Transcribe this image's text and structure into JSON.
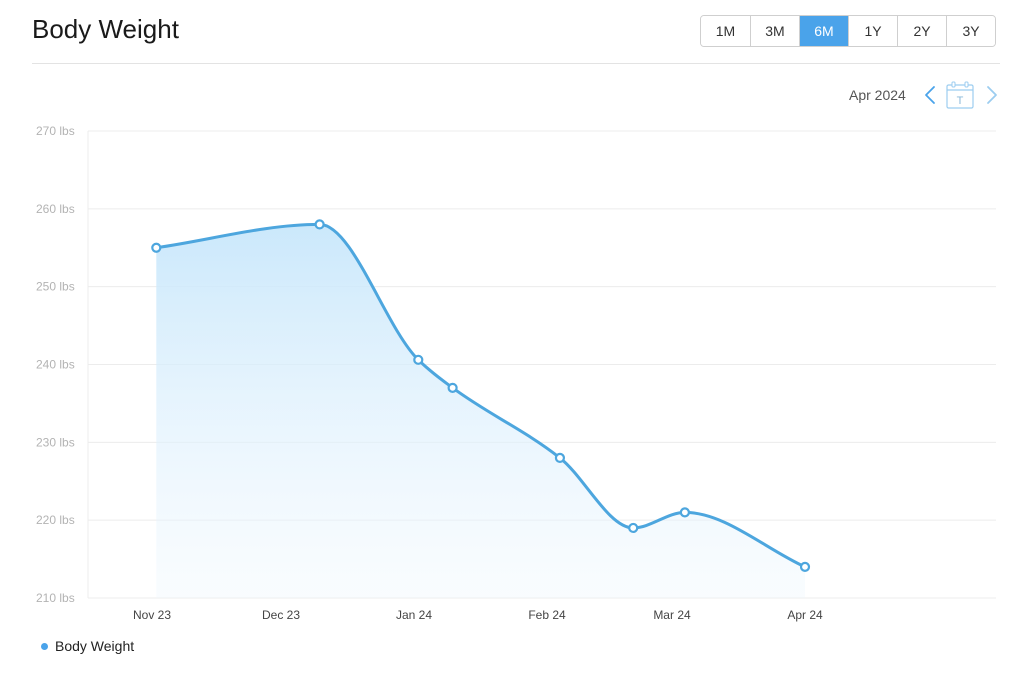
{
  "header": {
    "title": "Body Weight",
    "ranges": [
      {
        "label": "1M",
        "active": false
      },
      {
        "label": "3M",
        "active": false
      },
      {
        "label": "6M",
        "active": true
      },
      {
        "label": "1Y",
        "active": false
      },
      {
        "label": "2Y",
        "active": false
      },
      {
        "label": "3Y",
        "active": false
      }
    ]
  },
  "period": {
    "label": "Apr 2024",
    "prev_icon": "chevron-left-icon",
    "next_icon": "chevron-right-icon",
    "calendar_icon": "calendar-today-icon",
    "calendar_glyph": "T"
  },
  "colors": {
    "accent": "#4aa3ea",
    "line": "#4da6de",
    "fill_top": "#c8e7fb",
    "grid": "#ececec"
  },
  "chart_data": {
    "type": "area",
    "title": "",
    "xlabel": "",
    "ylabel": "",
    "x_ticks": [
      {
        "label": "Nov 23",
        "date": "2023-11-01"
      },
      {
        "label": "Dec 23",
        "date": "2023-12-01"
      },
      {
        "label": "Jan 24",
        "date": "2024-01-01"
      },
      {
        "label": "Feb 24",
        "date": "2024-02-01"
      },
      {
        "label": "Mar 24",
        "date": "2024-03-01"
      },
      {
        "label": "Apr 24",
        "date": "2024-04-01"
      }
    ],
    "y_ticks": [
      "270 lbs",
      "260 lbs",
      "250 lbs",
      "240 lbs",
      "230 lbs",
      "220 lbs",
      "210 lbs"
    ],
    "y_tick_values": [
      270,
      260,
      250,
      240,
      230,
      220,
      210
    ],
    "ylim": [
      210,
      270
    ],
    "grid": true,
    "legend_position": "bottom-left",
    "series": [
      {
        "name": "Body Weight",
        "points": [
          {
            "x": "2023-11-02",
            "y": 255
          },
          {
            "x": "2023-12-10",
            "y": 258
          },
          {
            "x": "2024-01-02",
            "y": 240.6
          },
          {
            "x": "2024-01-10",
            "y": 237
          },
          {
            "x": "2024-02-04",
            "y": 228
          },
          {
            "x": "2024-02-21",
            "y": 219
          },
          {
            "x": "2024-03-04",
            "y": 221
          },
          {
            "x": "2024-04-01",
            "y": 214
          }
        ]
      }
    ]
  }
}
